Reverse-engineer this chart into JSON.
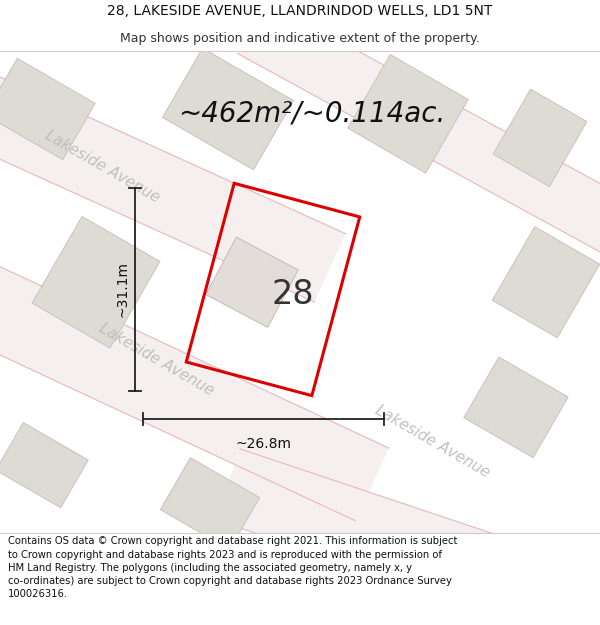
{
  "title_line1": "28, LAKESIDE AVENUE, LLANDRINDOD WELLS, LD1 5NT",
  "title_line2": "Map shows position and indicative extent of the property.",
  "footer_text": "Contains OS data © Crown copyright and database right 2021. This information is subject to Crown copyright and database rights 2023 and is reproduced with the permission of HM Land Registry. The polygons (including the associated geometry, namely x, y co-ordinates) are subject to Crown copyright and database rights 2023 Ordnance Survey 100026316.",
  "area_label": "~462m²/~0.114ac.",
  "width_label": "~26.8m",
  "height_label": "~31.1m",
  "plot_number": "28",
  "map_bg": "#f2f0ee",
  "road_fill": "#f5efef",
  "road_pink": "#e8b8b8",
  "building_color": "#dedad4",
  "building_edge": "#c8c4bc",
  "plot_outline_color": "#dd0000",
  "road_label_color": "#bbbbbb",
  "dim_line_color": "#222222",
  "title_fontsize": 10,
  "subtitle_fontsize": 9,
  "area_fontsize": 20,
  "plot_num_fontsize": 24,
  "dim_fontsize": 10,
  "road_label_fontsize": 11,
  "footer_fontsize": 7.2
}
